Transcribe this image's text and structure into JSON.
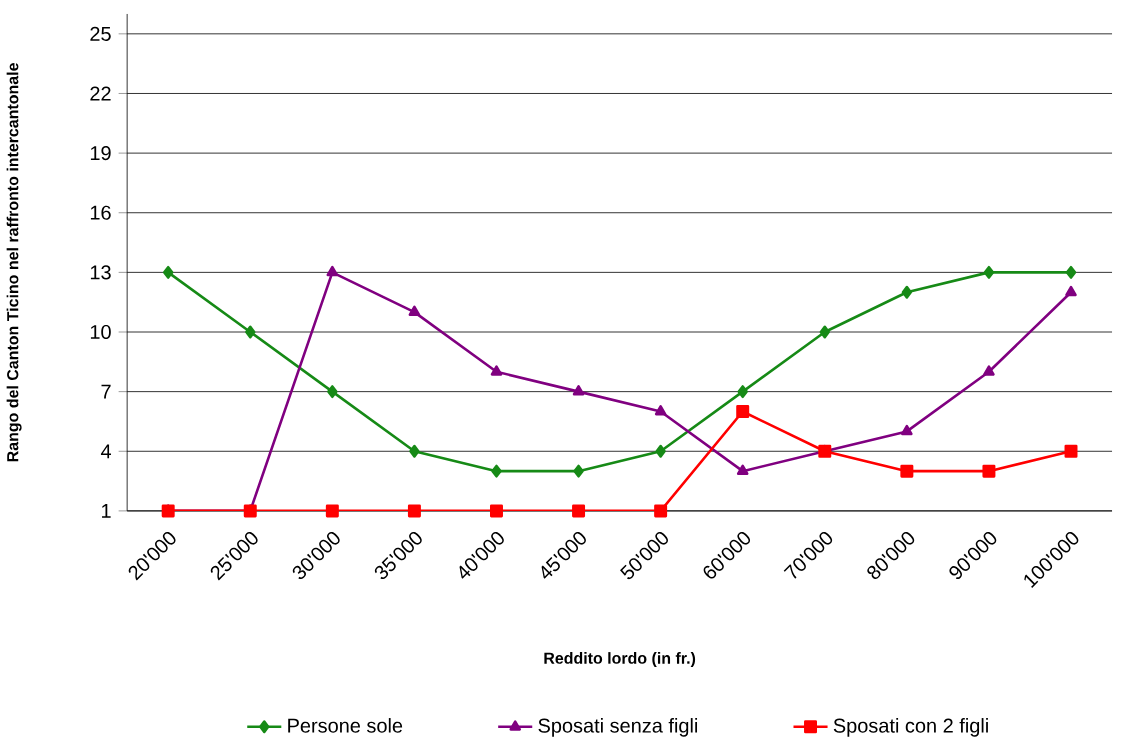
{
  "chart_data": {
    "type": "line",
    "xlabel": "Reddito lordo (in fr.)",
    "ylabel": "Rango del Canton Ticino nel raffronto intercantonale",
    "categories": [
      "20'000",
      "25'000",
      "30'000",
      "35'000",
      "40'000",
      "45'000",
      "50'000",
      "60'000",
      "70'000",
      "80'000",
      "90'000",
      "100'000"
    ],
    "series": [
      {
        "name": "Persone sole",
        "color": "#168a16",
        "marker": "diamond",
        "values": [
          13,
          10,
          7,
          4,
          3,
          3,
          4,
          7,
          10,
          12,
          13,
          13
        ]
      },
      {
        "name": "Sposati senza figli",
        "color": "#800080",
        "marker": "triangle",
        "values": [
          1,
          1,
          13,
          11,
          8,
          7,
          6,
          3,
          4,
          5,
          8,
          12
        ]
      },
      {
        "name": "Sposati con 2 figli",
        "color": "#ff0000",
        "marker": "square",
        "values": [
          1,
          1,
          1,
          1,
          1,
          1,
          1,
          6,
          4,
          3,
          3,
          4
        ]
      }
    ],
    "ylim": [
      1,
      26
    ],
    "yticks": [
      1,
      4,
      7,
      10,
      13,
      16,
      19,
      22,
      25
    ],
    "grid": "y",
    "legend": "bottom",
    "line_style": "solid"
  }
}
